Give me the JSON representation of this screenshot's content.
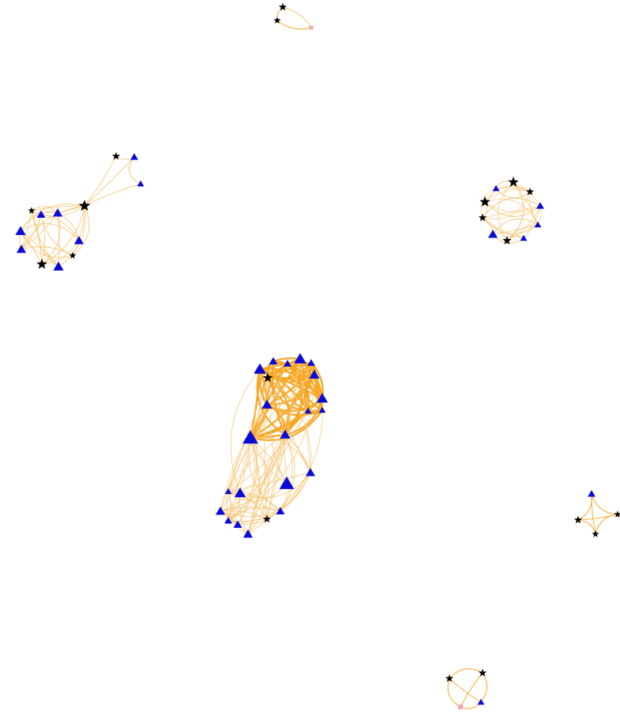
{
  "colors": {
    "background": "#ffffff",
    "edge": "#f5a623",
    "edge_light": "#f7c77a",
    "node_triangle": "#0a0ad6",
    "node_star": "#000000",
    "node_pink": "#f4a6b8"
  },
  "node_types": {
    "triangle": "triangle-icon",
    "star": "star-icon",
    "pink_square": "square-icon"
  },
  "clusters": [
    {
      "id": "top-small",
      "node_count": 3
    },
    {
      "id": "upper-left",
      "node_count": 13
    },
    {
      "id": "upper-right-ring",
      "node_count": 12
    },
    {
      "id": "center-large",
      "node_count": 28
    },
    {
      "id": "right-small",
      "node_count": 4
    },
    {
      "id": "bottom-small",
      "node_count": 4
    }
  ]
}
